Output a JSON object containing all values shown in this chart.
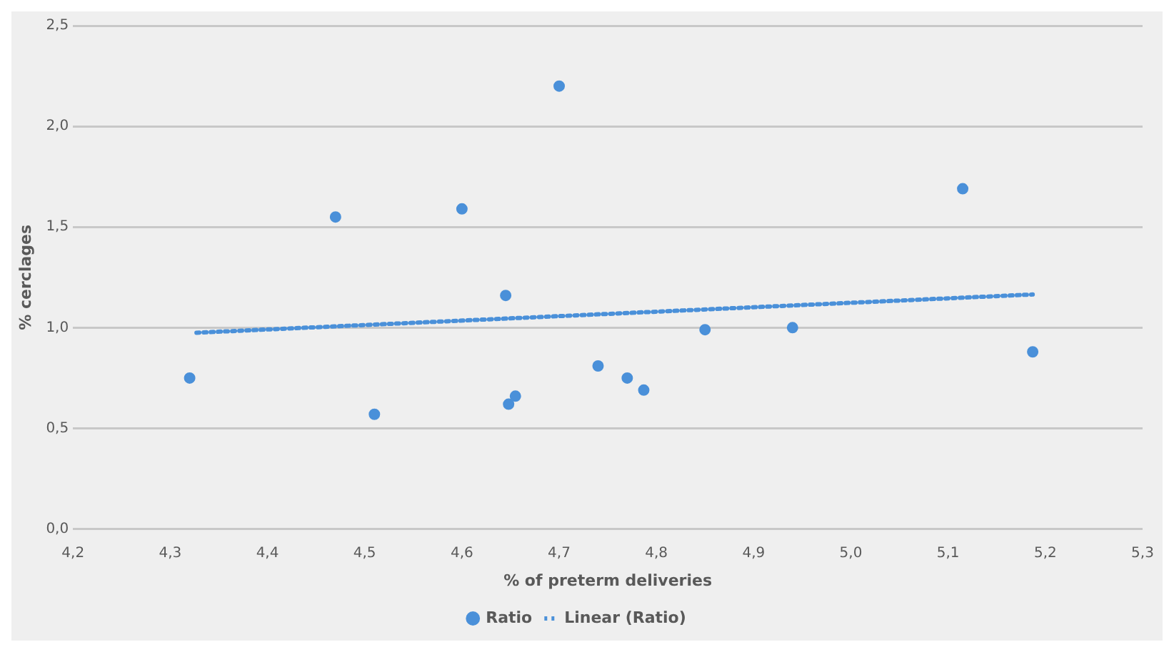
{
  "chart_data": {
    "type": "scatter",
    "xlabel": "% of preterm deliveries",
    "ylabel": "% cerclages",
    "series": [
      {
        "name": "Ratio",
        "color": "#4a90d9",
        "marker": "circle",
        "x": [
          4.32,
          4.47,
          4.51,
          4.6,
          4.645,
          4.648,
          4.655,
          4.7,
          4.74,
          4.77,
          4.787,
          4.85,
          4.94,
          5.115,
          5.187
        ],
        "values": [
          0.75,
          1.55,
          0.57,
          1.59,
          1.16,
          0.62,
          0.66,
          2.2,
          0.81,
          0.75,
          0.69,
          0.99,
          1.0,
          1.69,
          0.88
        ]
      },
      {
        "name": "Linear (Ratio)",
        "type": "line",
        "color": "#4a90d9",
        "marker": "none",
        "line_style": "dotted",
        "x": [
          4.327,
          5.187
        ],
        "values": [
          0.975,
          1.165
        ]
      }
    ],
    "xlim": [
      4.2,
      5.3
    ],
    "xticks": [
      {
        "value": 4.2,
        "label": "4,2"
      },
      {
        "value": 4.3,
        "label": "4,3"
      },
      {
        "value": 4.4,
        "label": "4,4"
      },
      {
        "value": 4.5,
        "label": "4,5"
      },
      {
        "value": 4.6,
        "label": "4,6"
      },
      {
        "value": 4.7,
        "label": "4,7"
      },
      {
        "value": 4.8,
        "label": "4,8"
      },
      {
        "value": 4.9,
        "label": "4,9"
      },
      {
        "value": 5.0,
        "label": "5,0"
      },
      {
        "value": 5.1,
        "label": "5,1"
      },
      {
        "value": 5.2,
        "label": "5,2"
      },
      {
        "value": 5.3,
        "label": "5,3"
      }
    ],
    "ylim": [
      0,
      2.5
    ],
    "yticks": [
      {
        "value": 0,
        "label": "0,0"
      },
      {
        "value": 0.5,
        "label": "0,5"
      },
      {
        "value": 1.0,
        "label": "1,0"
      },
      {
        "value": 1.5,
        "label": "1,5"
      },
      {
        "value": 2.0,
        "label": "2,0"
      },
      {
        "value": 2.5,
        "label": "2,5"
      }
    ],
    "grid": "y",
    "legend": "bottom"
  }
}
